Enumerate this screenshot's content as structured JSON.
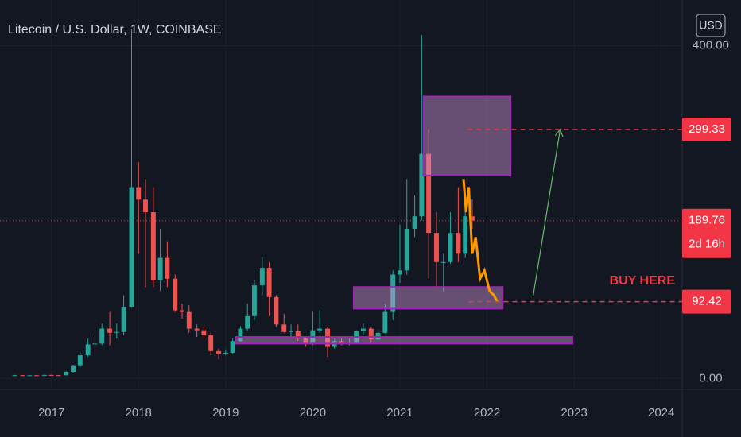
{
  "chart_data": {
    "type": "candlestick",
    "title": "Litecoin / U.S. Dollar, 1W, COINBASE",
    "currency": "USD",
    "up_color": "#26a69a",
    "down_color": "#ef5350",
    "x": [
      2016.58,
      2016.67,
      2016.75,
      2016.83,
      2016.92,
      2017.0,
      2017.08,
      2017.17,
      2017.25,
      2017.33,
      2017.42,
      2017.5,
      2017.58,
      2017.67,
      2017.75,
      2017.83,
      2017.92,
      2018.0,
      2018.08,
      2018.17,
      2018.25,
      2018.33,
      2018.42,
      2018.5,
      2018.58,
      2018.67,
      2018.75,
      2018.83,
      2018.92,
      2019.0,
      2019.08,
      2019.17,
      2019.25,
      2019.33,
      2019.42,
      2019.5,
      2019.58,
      2019.67,
      2019.75,
      2019.83,
      2019.92,
      2020.0,
      2020.08,
      2020.17,
      2020.25,
      2020.33,
      2020.42,
      2020.5,
      2020.58,
      2020.67,
      2020.75,
      2020.83,
      2020.92,
      2021.0,
      2021.08,
      2021.17,
      2021.25,
      2021.33,
      2021.42,
      2021.5,
      2021.58,
      2021.67,
      2021.75,
      2021.83
    ],
    "open": [
      4,
      4,
      3.8,
      3.9,
      3.7,
      4.3,
      4,
      3.9,
      8,
      15,
      28,
      41,
      42,
      60,
      55,
      56,
      86,
      230,
      215,
      200,
      118,
      145,
      120,
      82,
      80,
      60,
      58,
      52,
      33,
      30,
      31,
      45,
      60,
      75,
      112,
      133,
      98,
      65,
      56,
      57,
      48,
      41,
      58,
      60,
      38,
      45,
      43,
      42,
      57,
      60,
      47,
      55,
      80,
      125,
      130,
      180,
      195,
      270,
      175,
      140,
      140,
      175,
      150,
      195
    ],
    "high": [
      4.5,
      4.2,
      4,
      4.2,
      4.6,
      4.5,
      4.3,
      9,
      16,
      32,
      48,
      52,
      66,
      80,
      66,
      100,
      420,
      260,
      240,
      230,
      180,
      165,
      125,
      90,
      88,
      65,
      62,
      56,
      36,
      35,
      48,
      63,
      90,
      118,
      146,
      140,
      100,
      78,
      65,
      65,
      50,
      80,
      82,
      62,
      48,
      48,
      48,
      58,
      66,
      62,
      58,
      90,
      130,
      185,
      240,
      220,
      413,
      300,
      200,
      150,
      200,
      230,
      205,
      215
    ],
    "low": [
      3.6,
      3.6,
      3.6,
      3.5,
      3.6,
      3.8,
      3.7,
      3.8,
      7,
      14,
      26,
      38,
      40,
      40,
      48,
      52,
      85,
      150,
      110,
      110,
      105,
      110,
      80,
      72,
      55,
      50,
      48,
      28,
      23,
      28,
      30,
      44,
      58,
      70,
      100,
      75,
      62,
      55,
      50,
      45,
      38,
      40,
      55,
      26,
      36,
      40,
      40,
      41,
      52,
      42,
      46,
      54,
      70,
      115,
      125,
      170,
      190,
      120,
      110,
      105,
      138,
      140,
      145,
      180
    ],
    "close": [
      4,
      3.8,
      3.9,
      3.7,
      4.3,
      4,
      3.9,
      8,
      15,
      28,
      41,
      42,
      60,
      55,
      56,
      86,
      230,
      215,
      200,
      118,
      145,
      120,
      82,
      80,
      60,
      58,
      52,
      33,
      30,
      31,
      45,
      60,
      75,
      112,
      133,
      98,
      65,
      56,
      57,
      48,
      41,
      58,
      60,
      38,
      45,
      43,
      42,
      57,
      60,
      47,
      55,
      80,
      125,
      130,
      180,
      195,
      270,
      175,
      140,
      140,
      175,
      150,
      195,
      189.76
    ],
    "xlim": [
      2016.41,
      2024.24
    ],
    "xticks": [
      2017,
      2018,
      2019,
      2020,
      2021,
      2022,
      2023,
      2024
    ],
    "ylim": [
      -13,
      455
    ],
    "yticks": [
      {
        "value": 0,
        "label": "0.00"
      },
      {
        "value": 400,
        "label": "400.00"
      }
    ],
    "last_price": {
      "value": 189.76,
      "countdown": "2d 16h",
      "color": "#f23645"
    },
    "levels": [
      {
        "value": 299.33,
        "x": 2021.78,
        "color": "#f23645"
      },
      {
        "value": 92.42,
        "x": 2021.79,
        "color": "#f23645"
      }
    ],
    "boxes": [
      {
        "x": [
          2021.27,
          2022.27
        ],
        "y": [
          244,
          339
        ]
      },
      {
        "x": [
          2020.47,
          2022.18
        ],
        "y": [
          84,
          110
        ]
      },
      {
        "x": [
          2019.12,
          2022.98
        ],
        "y": [
          42,
          50
        ]
      }
    ],
    "projection": {
      "color": "#ff9800",
      "x": [
        2021.73,
        2021.76,
        2021.79,
        2021.83,
        2021.87,
        2021.92,
        2021.97,
        2022.03,
        2022.08,
        2022.12
      ],
      "y": [
        240,
        200,
        230,
        150,
        170,
        120,
        130,
        105,
        100,
        92
      ]
    },
    "arrow": {
      "color": "#66bb6a",
      "x": [
        2022.53,
        2022.84
      ],
      "y": [
        99.5,
        299.5
      ]
    },
    "note": "BUY HERE"
  }
}
